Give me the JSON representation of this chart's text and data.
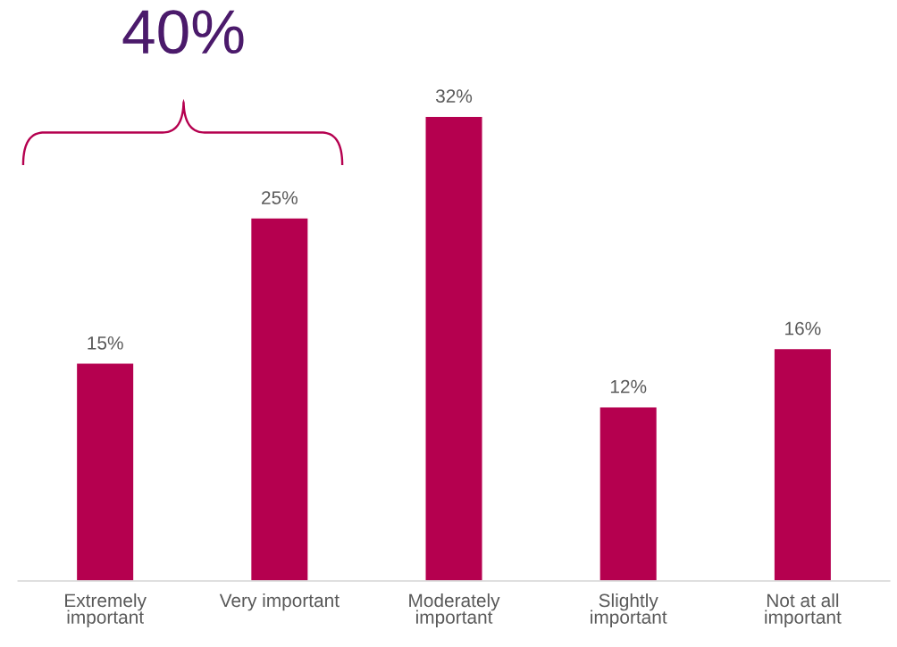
{
  "chart_data": {
    "type": "bar",
    "categories": [
      "Extremely important",
      "Very important",
      "Moderately important",
      "Slightly important",
      "Not at all important"
    ],
    "values": [
      15,
      25,
      32,
      12,
      16
    ],
    "value_labels": [
      "15%",
      "25%",
      "32%",
      "12%",
      "16%"
    ],
    "color": "#b5004f",
    "annotations": [
      "40%"
    ],
    "grid": false,
    "legend": false
  }
}
